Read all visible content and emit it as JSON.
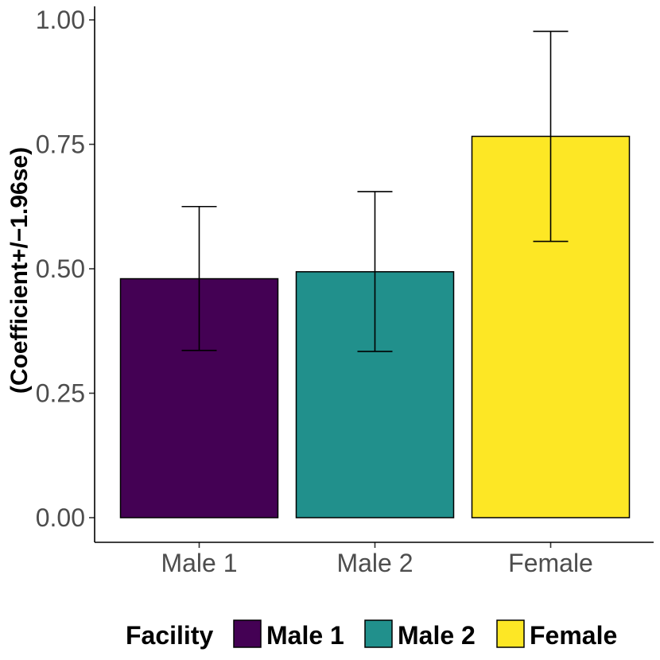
{
  "chart_data": {
    "type": "bar",
    "categories": [
      "Male 1",
      "Male 2",
      "Female"
    ],
    "values": [
      0.48,
      0.494,
      0.766
    ],
    "error_low": [
      0.336,
      0.334,
      0.555
    ],
    "error_high": [
      0.625,
      0.655,
      0.977
    ],
    "colors": [
      "#440154",
      "#21908C",
      "#FDE725"
    ],
    "ylabel": "(Coefficient+/−1.96se)",
    "xlabel": "",
    "ylim": [
      -0.05,
      1.03
    ],
    "yticks": [
      0.0,
      0.25,
      0.5,
      0.75,
      1.0
    ],
    "ytick_labels": [
      "0.00",
      "0.25",
      "0.50",
      "0.75",
      "1.00"
    ],
    "grid": false,
    "legend": {
      "title": "Facility",
      "position": "bottom",
      "items": [
        "Male 1",
        "Male 2",
        "Female"
      ]
    }
  }
}
